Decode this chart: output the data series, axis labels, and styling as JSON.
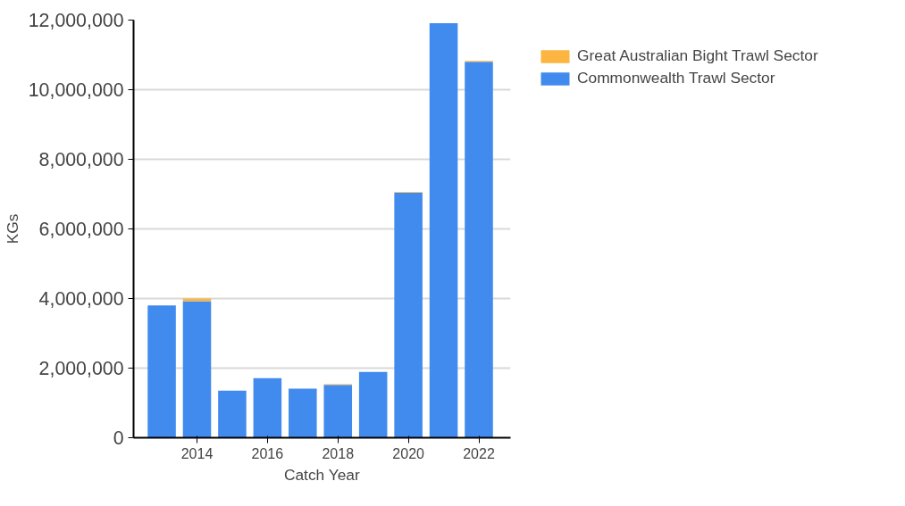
{
  "chart_data": {
    "type": "bar",
    "stacked": true,
    "xlabel": "Catch Year",
    "ylabel": "KGs",
    "x": [
      2013,
      2014,
      2015,
      2016,
      2017,
      2018,
      2019,
      2020,
      2021,
      2022
    ],
    "series": [
      {
        "name": "Commonwealth Trawl Sector",
        "color": "#418bee",
        "values": [
          3800000,
          3920000,
          1350000,
          1710000,
          1410000,
          1520000,
          1890000,
          7040000,
          11910000,
          10800000
        ]
      },
      {
        "name": "Great Australian Bight Trawl Sector",
        "color": "#fbb540",
        "values": [
          null,
          80000,
          null,
          null,
          null,
          20000,
          null,
          20000,
          null,
          30000
        ]
      }
    ],
    "xlim": [
      2012.2,
      2022.9
    ],
    "xticks": [
      2014,
      2016,
      2018,
      2020,
      2022
    ],
    "ylim": [
      0,
      12000000
    ],
    "yticks": [
      {
        "value": 0,
        "label": "0"
      },
      {
        "value": 2000000,
        "label": "2,000,000"
      },
      {
        "value": 4000000,
        "label": "4,000,000"
      },
      {
        "value": 6000000,
        "label": "6,000,000"
      },
      {
        "value": 8000000,
        "label": "8,000,000"
      },
      {
        "value": 10000000,
        "label": "10,000,000"
      },
      {
        "value": 12000000,
        "label": "12,000,000"
      }
    ],
    "grid": "y",
    "legend": "top right"
  }
}
